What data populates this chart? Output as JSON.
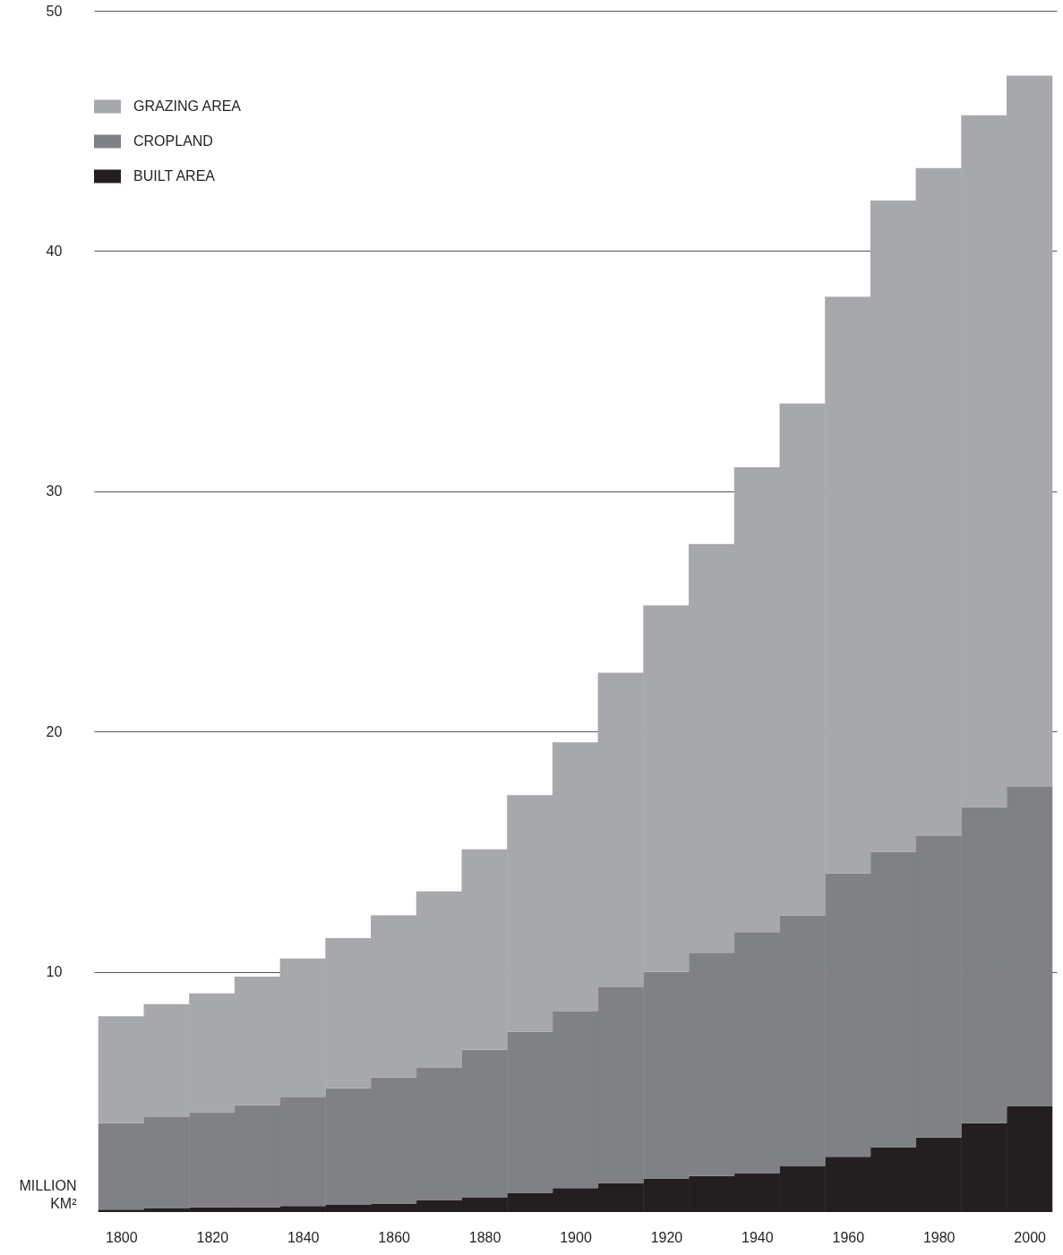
{
  "chart_data": {
    "type": "bar",
    "stacked": true,
    "ylabel": "MILLION KM²",
    "x": [
      1800,
      1810,
      1820,
      1830,
      1840,
      1850,
      1860,
      1870,
      1880,
      1890,
      1900,
      1910,
      1920,
      1930,
      1940,
      1950,
      1960,
      1970,
      1980,
      1990,
      2000
    ],
    "series": [
      {
        "name": "BUILT AREA",
        "color": "#231f20",
        "values": [
          0.1,
          0.15,
          0.2,
          0.2,
          0.25,
          0.3,
          0.35,
          0.5,
          0.6,
          0.8,
          1.0,
          1.2,
          1.4,
          1.5,
          1.6,
          1.9,
          2.3,
          2.7,
          3.1,
          3.7,
          4.4
        ]
      },
      {
        "name": "CROPLAND",
        "color": "#808184",
        "values": [
          3.6,
          3.8,
          3.95,
          4.25,
          4.55,
          4.85,
          5.25,
          5.5,
          6.15,
          6.7,
          7.35,
          8.15,
          8.6,
          9.3,
          10.05,
          10.45,
          11.8,
          12.3,
          12.55,
          13.15,
          13.3
        ]
      },
      {
        "name": "GRAZING AREA",
        "color": "#a7a8ab",
        "values": [
          4.45,
          4.7,
          4.95,
          5.35,
          5.75,
          6.25,
          6.75,
          7.35,
          8.35,
          9.85,
          11.2,
          13.1,
          15.25,
          17.0,
          19.35,
          21.3,
          24.0,
          27.1,
          27.8,
          28.8,
          29.6
        ]
      }
    ],
    "xlim": [
      1795,
      2005
    ],
    "xticks": [
      1800,
      1820,
      1840,
      1860,
      1880,
      1900,
      1920,
      1940,
      1960,
      1980,
      2000
    ],
    "ylim": [
      0,
      50
    ],
    "yticks": [
      10,
      20,
      30,
      40,
      50
    ],
    "grid": "y",
    "legend": "top left"
  }
}
